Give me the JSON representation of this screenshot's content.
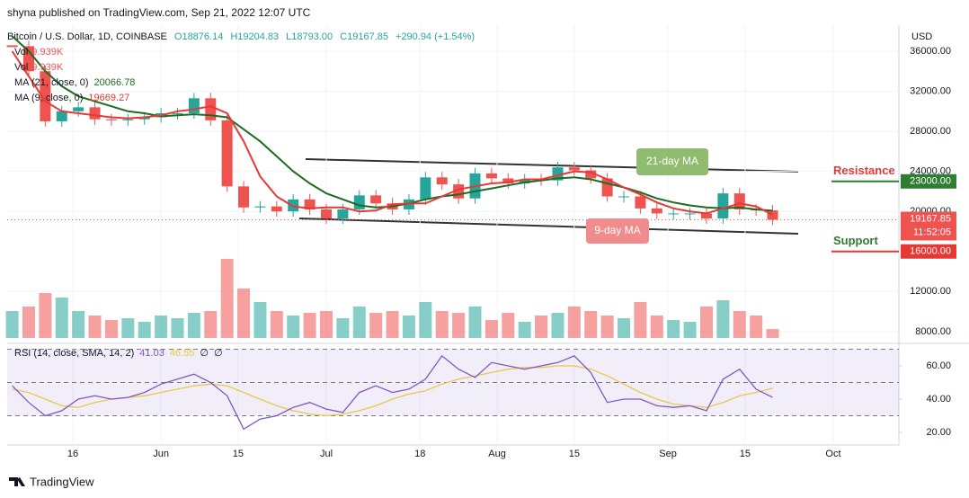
{
  "header": {
    "publisher": "shyna published on TradingView.com, Sep 21, 2022 12:07 UTC",
    "symbol": "Bitcoin / U.S. Dollar, 1D, COINBASE",
    "ohlc": [
      "O18876.14",
      "H19204.83",
      "L18793.00",
      "C19167.85"
    ],
    "change": "+290.94 (+1.54%)",
    "currency": "USD",
    "price_time": "11:52:05",
    "brand": "TradingView"
  },
  "chart_data": [
    {
      "type": "candlestick",
      "x": [
        "May 5",
        "May 8",
        "May 11",
        "May 14",
        "May 17",
        "May 20",
        "May 23",
        "May 26",
        "May 29",
        "Jun 1",
        "Jun 4",
        "Jun 7",
        "Jun 10",
        "Jun 13",
        "Jun 16",
        "Jun 19",
        "Jun 22",
        "Jun 25",
        "Jun 28",
        "Jul 1",
        "Jul 4",
        "Jul 7",
        "Jul 10",
        "Jul 13",
        "Jul 16",
        "Jul 19",
        "Jul 22",
        "Jul 25",
        "Jul 28",
        "Jul 31",
        "Aug 3",
        "Aug 6",
        "Aug 9",
        "Aug 12",
        "Aug 15",
        "Aug 18",
        "Aug 21",
        "Aug 24",
        "Aug 27",
        "Aug 30",
        "Sep 2",
        "Sep 5",
        "Sep 8",
        "Sep 11",
        "Sep 14",
        "Sep 17",
        "Sep 20"
      ],
      "values": [
        36500,
        34000,
        29000,
        30000,
        30400,
        29200,
        29100,
        29200,
        29400,
        29800,
        29800,
        31300,
        29100,
        22500,
        20400,
        20500,
        20000,
        21200,
        20200,
        19300,
        20200,
        21600,
        20800,
        20200,
        21200,
        23400,
        22700,
        21300,
        23800,
        23300,
        22800,
        23200,
        23100,
        24400,
        24100,
        23300,
        21500,
        21500,
        20300,
        19800,
        19800,
        19800,
        19300,
        21800,
        20200,
        20100,
        19167.85
      ],
      "up_color": "#26a69a",
      "down_color": "#ef5350",
      "volume": {
        "name": "Vol",
        "values": [
          30,
          35,
          50,
          45,
          30,
          25,
          20,
          22,
          18,
          25,
          22,
          28,
          30,
          88,
          55,
          40,
          30,
          25,
          28,
          30,
          22,
          35,
          28,
          30,
          25,
          40,
          30,
          28,
          35,
          20,
          28,
          18,
          25,
          28,
          35,
          30,
          25,
          22,
          40,
          25,
          20,
          18,
          35,
          42,
          30,
          25,
          9.939
        ],
        "value_labels": {
          "46": "9.939K"
        },
        "vlim": [
          0,
          352
        ]
      },
      "series": [
        {
          "name": "MA (21, close, 0)",
          "color": "#1e6b23",
          "values": [
            37500,
            36000,
            34000,
            32500,
            31500,
            31000,
            30500,
            30000,
            29800,
            29500,
            29600,
            29700,
            29600,
            29400,
            28200,
            27000,
            25500,
            24000,
            22800,
            21800,
            21200,
            20600,
            20400,
            20500,
            20800,
            21200,
            21500,
            21700,
            22000,
            22300,
            22600,
            22900,
            23100,
            23300,
            23400,
            23200,
            22800,
            22400,
            21900,
            21300,
            20900,
            20600,
            20400,
            20300,
            20400,
            20200,
            20066.78
          ]
        },
        {
          "name": "MA (9, close, 0)",
          "color": "#e53935",
          "values": [
            36000,
            33500,
            31000,
            30000,
            29800,
            29600,
            29400,
            29300,
            29400,
            29600,
            30000,
            30200,
            30500,
            29800,
            27000,
            23500,
            21500,
            20500,
            20300,
            20400,
            20400,
            20000,
            20100,
            20700,
            20800,
            20800,
            21500,
            22200,
            22500,
            22800,
            22900,
            23200,
            23200,
            23600,
            24000,
            23900,
            23200,
            22400,
            21700,
            20900,
            20300,
            20000,
            19800,
            20300,
            20800,
            20500,
            19669.27
          ]
        }
      ],
      "ylim": [
        7000,
        38600
      ],
      "yticks": [
        {
          "value": 36000,
          "label": "36000.00"
        },
        {
          "value": 32000,
          "label": "32000.00"
        },
        {
          "value": 28000,
          "label": "28000.00"
        },
        {
          "value": 24000,
          "label": "24000.00"
        },
        {
          "value": 20000,
          "label": "20000.00"
        },
        {
          "value": 12000,
          "label": "12000.00"
        },
        {
          "value": 8000,
          "label": "8000.00"
        }
      ],
      "xticks": [
        {
          "value": "May 16",
          "label": "16"
        },
        {
          "value": "Jun 1",
          "label": "Jun"
        },
        {
          "value": "Jun 15",
          "label": "15"
        },
        {
          "value": "Jul 1",
          "label": "Jul"
        },
        {
          "value": "Jul 18",
          "label": "18"
        },
        {
          "value": "Aug 1",
          "label": "Aug"
        },
        {
          "value": "Aug 15",
          "label": "15"
        },
        {
          "value": "Sep 1",
          "label": "Sep"
        },
        {
          "value": "Sep 15",
          "label": "15"
        },
        {
          "value": "Oct 1",
          "label": "Oct"
        }
      ],
      "levels": [
        {
          "name": "Resistance",
          "value": 23000,
          "label": "23000.00",
          "color": "#2e7d32",
          "text_color": "#e53935"
        },
        {
          "name": "Support",
          "value": 16000,
          "label": "16000.00",
          "color": "#e53935",
          "text_color": "#2e7d32"
        }
      ],
      "annotations": [
        "21-day MA",
        "9-day MA"
      ],
      "grid": true
    },
    {
      "type": "line",
      "title": "RSI (14, close, SMA, 14, 2)",
      "flags": [
        "∅",
        "∅"
      ],
      "x": [
        "May 5",
        "May 8",
        "May 11",
        "May 14",
        "May 17",
        "May 20",
        "May 23",
        "May 26",
        "May 29",
        "Jun 1",
        "Jun 4",
        "Jun 7",
        "Jun 10",
        "Jun 13",
        "Jun 16",
        "Jun 19",
        "Jun 22",
        "Jun 25",
        "Jun 28",
        "Jul 1",
        "Jul 4",
        "Jul 7",
        "Jul 10",
        "Jul 13",
        "Jul 16",
        "Jul 19",
        "Jul 22",
        "Jul 25",
        "Jul 28",
        "Jul 31",
        "Aug 3",
        "Aug 6",
        "Aug 9",
        "Aug 12",
        "Aug 15",
        "Aug 18",
        "Aug 21",
        "Aug 24",
        "Aug 27",
        "Aug 30",
        "Sep 2",
        "Sep 5",
        "Sep 8",
        "Sep 11",
        "Sep 14",
        "Sep 17",
        "Sep 20"
      ],
      "series": [
        {
          "color": "#7e57c2",
          "values": [
            48,
            38,
            30,
            33,
            40,
            42,
            40,
            41,
            44,
            49,
            52,
            55,
            50,
            42,
            22,
            28,
            30,
            35,
            38,
            34,
            32,
            44,
            48,
            44,
            46,
            52,
            66,
            58,
            53,
            62,
            60,
            58,
            60,
            62,
            66,
            56,
            38,
            40,
            40,
            36,
            35,
            36,
            33,
            52,
            58,
            46,
            41.03
          ]
        },
        {
          "color": "#e6c94a",
          "values": [
            46,
            44,
            40,
            36,
            35,
            38,
            40,
            41,
            42,
            44,
            46,
            48,
            49,
            48,
            44,
            40,
            36,
            33,
            31,
            30,
            31,
            33,
            36,
            40,
            43,
            45,
            49,
            52,
            54,
            56,
            58,
            59,
            59,
            60,
            60,
            58,
            54,
            49,
            44,
            40,
            37,
            36,
            35,
            38,
            42,
            44,
            46.55
          ]
        }
      ],
      "ylim": [
        12.4,
        71.9
      ],
      "yticks": [
        {
          "value": 60,
          "label": "60.00"
        },
        {
          "value": 40,
          "label": "40.00"
        },
        {
          "value": 20,
          "label": "20.00"
        }
      ],
      "bands": [
        70,
        50,
        30
      ]
    }
  ]
}
